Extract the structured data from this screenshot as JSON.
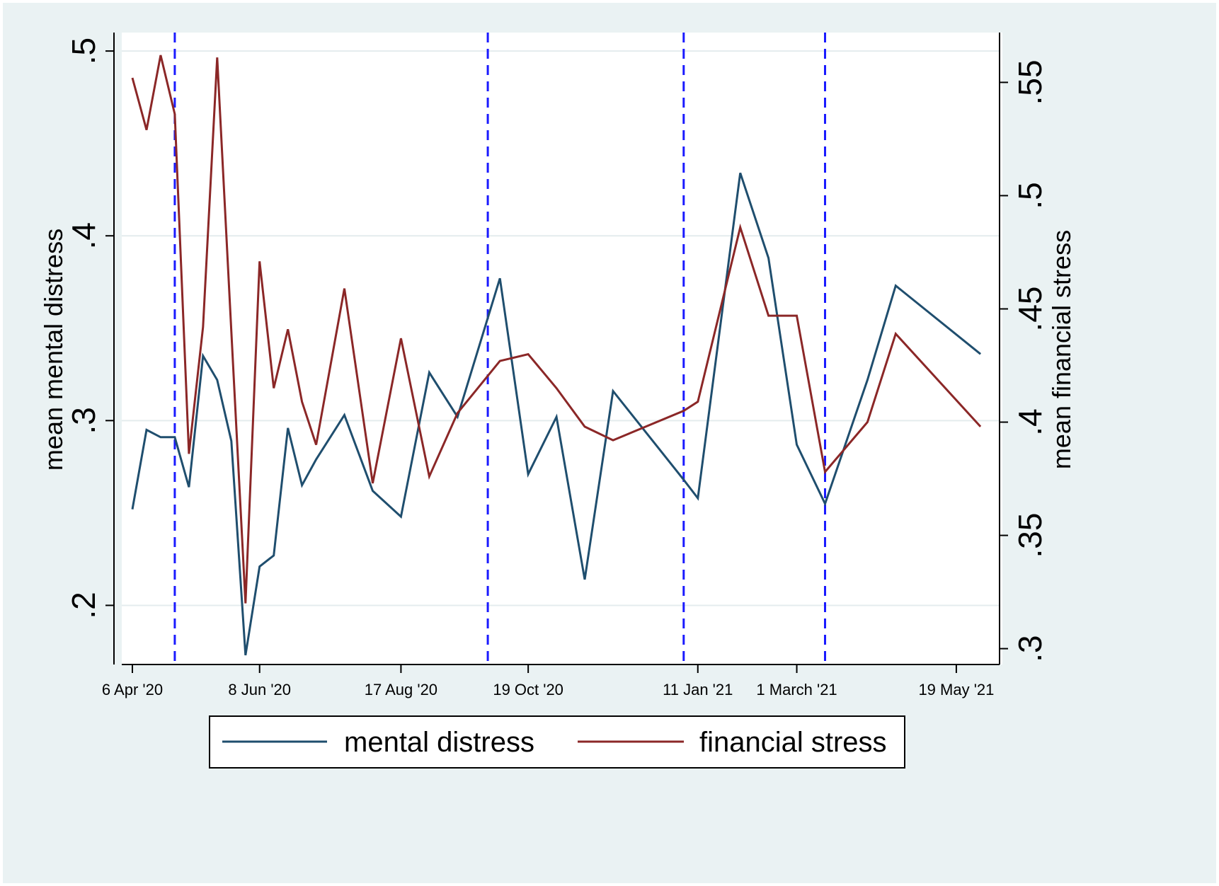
{
  "chart_data": {
    "type": "line",
    "title": "",
    "xlabel": "",
    "ylabel": "mean mental distress",
    "y2label": "mean financial stress",
    "x_tick_labels": [
      "6 Apr '20",
      "8 Jun '20",
      "17 Aug '20",
      "19 Oct '20",
      "11 Jan '21",
      "1 March '21",
      "19 May '21"
    ],
    "x_tick_positions": [
      "2020-04-06",
      "2020-06-08",
      "2020-08-17",
      "2020-10-19",
      "2021-01-11",
      "2021-03-01",
      "2021-05-19"
    ],
    "xlim": [
      "2020-04-06",
      "2021-06-01"
    ],
    "ylim": [
      0.168,
      0.51
    ],
    "y2lim": [
      0.293,
      0.572
    ],
    "y_ticks": [
      0.2,
      0.3,
      0.4,
      0.5
    ],
    "y_tick_labels": [
      ".2",
      ".3",
      ".4",
      ".5"
    ],
    "y2_ticks": [
      0.3,
      0.35,
      0.4,
      0.45,
      0.5,
      0.55
    ],
    "y2_tick_labels": [
      ".3",
      ".35",
      ".4",
      ".45",
      ".5",
      ".55"
    ],
    "grid": true,
    "legend_position": "bottom",
    "vlines": [
      "2020-04-27",
      "2020-09-29",
      "2021-01-04",
      "2021-03-15"
    ],
    "vline_color": "#1a1aff",
    "series": [
      {
        "name": "mental distress",
        "axis": "left",
        "color": "#1f4e6e",
        "x": [
          "2020-04-06",
          "2020-04-13",
          "2020-04-20",
          "2020-04-27",
          "2020-05-04",
          "2020-05-11",
          "2020-05-18",
          "2020-05-25",
          "2020-06-01",
          "2020-06-08",
          "2020-06-15",
          "2020-06-22",
          "2020-06-29",
          "2020-07-06",
          "2020-07-20",
          "2020-08-03",
          "2020-08-17",
          "2020-08-31",
          "2020-09-14",
          "2020-10-05",
          "2020-10-19",
          "2020-11-02",
          "2020-11-16",
          "2020-11-30",
          "2021-01-04",
          "2021-01-11",
          "2021-02-01",
          "2021-02-15",
          "2021-03-01",
          "2021-03-15",
          "2021-04-05",
          "2021-04-19",
          "2021-05-31"
        ],
        "values": [
          0.252,
          0.295,
          0.291,
          0.291,
          0.264,
          0.335,
          0.322,
          0.289,
          0.173,
          0.221,
          0.227,
          0.296,
          0.265,
          0.279,
          0.303,
          0.262,
          0.248,
          0.326,
          0.302,
          0.377,
          0.271,
          0.302,
          0.214,
          0.316,
          0.268,
          0.258,
          0.434,
          0.388,
          0.287,
          0.255,
          0.322,
          0.373,
          0.336
        ]
      },
      {
        "name": "financial stress",
        "axis": "right",
        "color": "#8b2727",
        "x": [
          "2020-04-06",
          "2020-04-13",
          "2020-04-20",
          "2020-04-27",
          "2020-05-04",
          "2020-05-11",
          "2020-05-18",
          "2020-05-25",
          "2020-06-01",
          "2020-06-08",
          "2020-06-15",
          "2020-06-22",
          "2020-06-29",
          "2020-07-06",
          "2020-07-20",
          "2020-08-03",
          "2020-08-17",
          "2020-08-31",
          "2020-09-14",
          "2020-10-05",
          "2020-10-19",
          "2020-11-02",
          "2020-11-16",
          "2020-11-30",
          "2021-01-04",
          "2021-01-11",
          "2021-02-01",
          "2021-02-15",
          "2021-03-01",
          "2021-03-15",
          "2021-04-05",
          "2021-04-19",
          "2021-05-31"
        ],
        "values": [
          0.552,
          0.529,
          0.562,
          0.536,
          0.386,
          0.442,
          0.561,
          0.44,
          0.32,
          0.471,
          0.415,
          0.441,
          0.409,
          0.39,
          0.459,
          0.373,
          0.437,
          0.376,
          0.404,
          0.427,
          0.43,
          0.415,
          0.398,
          0.392,
          0.405,
          0.409,
          0.486,
          0.447,
          0.447,
          0.378,
          0.4,
          0.439,
          0.398
        ]
      }
    ]
  }
}
